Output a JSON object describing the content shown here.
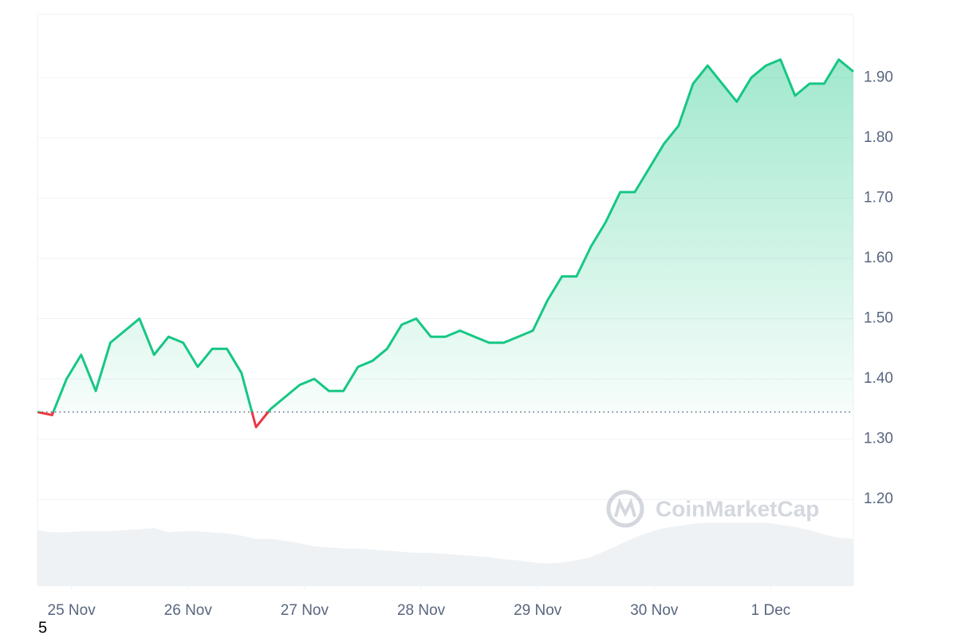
{
  "chart_data": {
    "type": "line",
    "x": [
      0,
      3,
      6,
      9,
      12,
      15,
      18,
      21,
      24,
      27,
      30,
      33,
      36,
      39,
      42,
      45,
      48,
      51,
      54,
      57,
      60,
      63,
      66,
      69,
      72,
      75,
      78,
      81,
      84,
      87,
      90,
      93,
      96,
      99,
      102,
      105,
      108,
      111,
      114,
      117,
      120,
      123,
      126,
      129,
      132,
      135,
      138,
      141,
      144,
      147,
      150,
      153,
      156,
      159,
      162,
      165,
      168
    ],
    "series": [
      {
        "color": "#16c784",
        "below_color": "#ea3943",
        "values": [
          1.345,
          1.34,
          1.4,
          1.44,
          1.38,
          1.46,
          1.48,
          1.5,
          1.44,
          1.47,
          1.46,
          1.42,
          1.45,
          1.45,
          1.41,
          1.32,
          1.35,
          1.37,
          1.39,
          1.4,
          1.38,
          1.38,
          1.42,
          1.43,
          1.45,
          1.49,
          1.5,
          1.47,
          1.47,
          1.48,
          1.47,
          1.46,
          1.46,
          1.47,
          1.48,
          1.53,
          1.57,
          1.57,
          1.62,
          1.66,
          1.71,
          1.71,
          1.75,
          1.79,
          1.82,
          1.89,
          1.92,
          1.89,
          1.86,
          1.9,
          1.92,
          1.93,
          1.87,
          1.89,
          1.89,
          1.93,
          1.91
        ]
      }
    ],
    "volume": {
      "color": "#eff2f5",
      "ylim": [
        0,
        100
      ],
      "values": [
        52,
        50,
        50,
        51,
        51,
        51,
        52,
        53,
        54,
        50,
        51,
        51,
        50,
        49,
        47,
        44,
        44,
        42,
        40,
        37,
        36,
        35,
        35,
        34,
        33,
        32,
        31,
        31,
        30,
        29,
        28,
        27,
        25,
        24,
        22,
        21,
        22,
        24,
        27,
        33,
        39,
        45,
        50,
        54,
        56,
        58,
        59,
        59,
        59,
        59,
        59,
        57,
        55,
        52,
        48,
        45,
        44
      ]
    },
    "baseline": 1.345,
    "xlim": [
      0,
      168
    ],
    "ylim": [
      1.056,
      2.005
    ],
    "xticks": [
      {
        "value": 7,
        "label": "25 Nov"
      },
      {
        "value": 31,
        "label": "26 Nov"
      },
      {
        "value": 55,
        "label": "27 Nov"
      },
      {
        "value": 79,
        "label": "28 Nov"
      },
      {
        "value": 103,
        "label": "29 Nov"
      },
      {
        "value": 127,
        "label": "30 Nov"
      },
      {
        "value": 151,
        "label": "1 Dec"
      }
    ],
    "yticks": [
      {
        "value": 1.2,
        "label": "1.20"
      },
      {
        "value": 1.3,
        "label": "1.30"
      },
      {
        "value": 1.4,
        "label": "1.40"
      },
      {
        "value": 1.5,
        "label": "1.50"
      },
      {
        "value": 1.6,
        "label": "1.60"
      },
      {
        "value": 1.7,
        "label": "1.70"
      },
      {
        "value": 1.8,
        "label": "1.80"
      },
      {
        "value": 1.9,
        "label": "1.90"
      }
    ],
    "grid": true,
    "watermark": "CoinMarketCap"
  },
  "footer_text": "5"
}
